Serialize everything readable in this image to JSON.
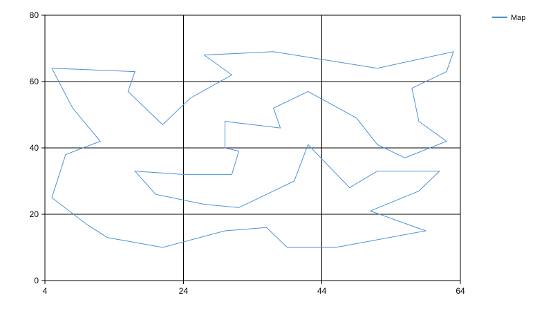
{
  "chart_data": {
    "type": "line",
    "title": "",
    "xlabel": "",
    "ylabel": "",
    "xlim": [
      4,
      64
    ],
    "ylim": [
      0,
      80
    ],
    "x_ticks": [
      4,
      24,
      44,
      64
    ],
    "y_ticks": [
      0,
      20,
      40,
      60,
      80
    ],
    "grid": true,
    "legend_position": "top-right",
    "series": [
      {
        "name": "Map",
        "color": "#4a90d9",
        "points": [
          [
            5,
            64
          ],
          [
            17,
            63
          ],
          [
            16,
            57
          ],
          [
            21,
            47
          ],
          [
            25,
            55
          ],
          [
            31,
            62
          ],
          [
            27,
            68
          ],
          [
            37,
            69
          ],
          [
            52,
            64
          ],
          [
            63,
            69
          ],
          [
            62,
            63
          ],
          [
            57,
            58
          ],
          [
            58,
            48
          ],
          [
            62,
            42
          ],
          [
            56,
            37
          ],
          [
            52,
            41
          ],
          [
            49,
            49
          ],
          [
            42,
            57
          ],
          [
            37,
            52
          ],
          [
            38,
            46
          ],
          [
            30,
            48
          ],
          [
            30,
            40
          ],
          [
            32,
            39
          ],
          [
            31,
            32
          ],
          [
            24,
            32
          ],
          [
            17,
            33
          ],
          [
            20,
            26
          ],
          [
            27,
            23
          ],
          [
            32,
            22
          ],
          [
            40,
            30
          ],
          [
            42,
            41
          ],
          [
            48,
            28
          ],
          [
            52,
            33
          ],
          [
            61,
            33
          ],
          [
            58,
            27
          ],
          [
            51,
            21
          ],
          [
            59,
            15
          ],
          [
            46,
            10
          ],
          [
            39,
            10
          ],
          [
            36,
            16
          ],
          [
            30,
            15
          ],
          [
            21,
            10
          ],
          [
            13,
            13
          ],
          [
            10,
            17
          ],
          [
            5,
            25
          ],
          [
            7,
            38
          ],
          [
            12,
            42
          ],
          [
            8,
            52
          ],
          [
            5,
            64
          ]
        ]
      }
    ]
  }
}
